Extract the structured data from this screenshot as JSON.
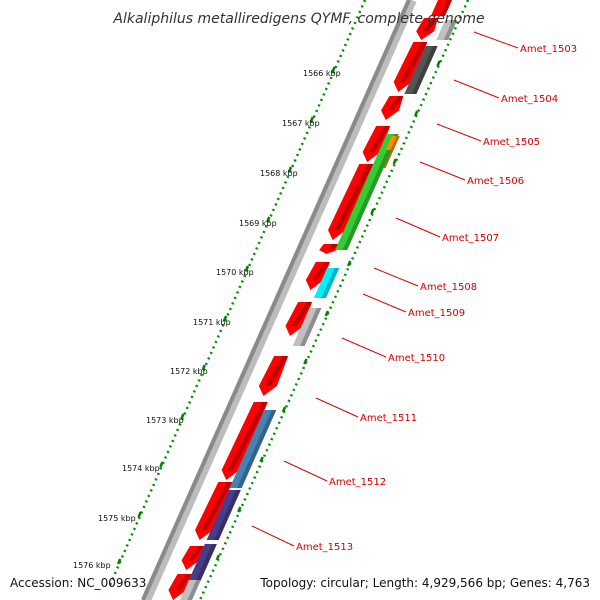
{
  "title": "Alkaliphilus metalliredigens QYMF, complete genome",
  "accession": "Accession: NC_009633",
  "topology": "Topology: circular; Length: 4,929,566 bp; Genes: 4,763",
  "kbp_labels": [
    "1566 kbp",
    "1567 kbp",
    "1568 kbp",
    "1569 kbp",
    "1570 kbp",
    "1571 kbp",
    "1572 kbp",
    "1573 kbp",
    "1574 kbp",
    "1575 kbp",
    "1576 kbp"
  ],
  "gene_labels": [
    "Amet_1503",
    "Amet_1504",
    "Amet_1505",
    "Amet_1506",
    "Amet_1507",
    "Amet_1508",
    "Amet_1509",
    "Amet_1510",
    "Amet_1511",
    "Amet_1512",
    "Amet_1513"
  ],
  "colors": {
    "forward_gene": "#ff0000",
    "label_red": "#d40000",
    "tick_green": "#008000",
    "backbone_gray": "#8c8c8c",
    "dark_gray": "#555555",
    "light_gray": "#c0c0c0",
    "orange": "#ff8c00",
    "green": "#33cc33",
    "cyan": "#00f0ff",
    "steel_blue": "#4682b4",
    "dark_slate_blue": "#483d8b"
  }
}
